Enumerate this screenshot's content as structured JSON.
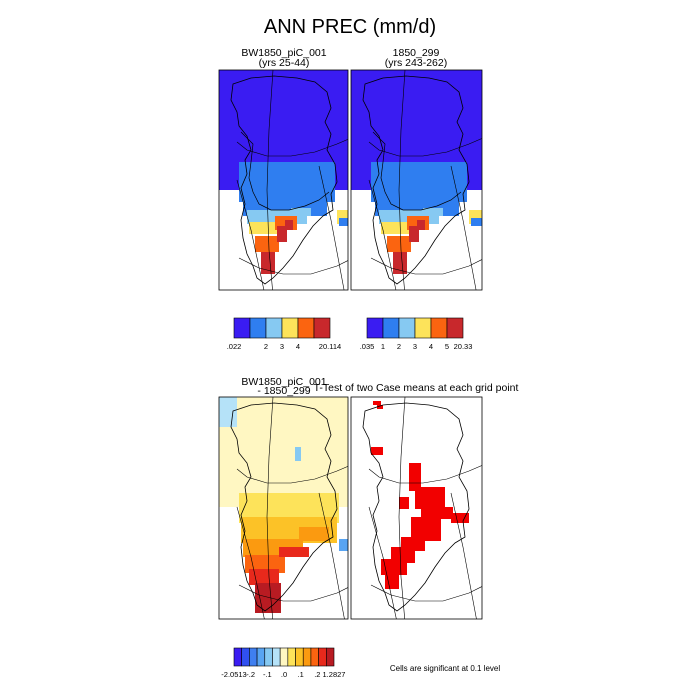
{
  "title": "ANN PREC (mm/d)",
  "chart_data": [
    {
      "type": "heatmap",
      "title_line1": "BW1850_piC_001",
      "title_line2": "(yrs 25-44)",
      "colorbar": {
        "colors": [
          "#3a1cf2",
          "#2f7ef0",
          "#86c9f2",
          "#fde35a",
          "#fb6410",
          "#c8282c"
        ],
        "labels": [
          ".022",
          "",
          "2",
          "3",
          "4",
          "",
          "20.114"
        ]
      }
    },
    {
      "type": "heatmap",
      "title_line1": "1850_299",
      "title_line2": "(yrs 243-262)",
      "colorbar": {
        "colors": [
          "#3a1cf2",
          "#2f7ef0",
          "#86c9f2",
          "#fde35a",
          "#fb6410",
          "#c8282c"
        ],
        "labels": [
          ".035",
          "1",
          "2",
          "3",
          "4",
          "5",
          "20.33"
        ]
      }
    },
    {
      "type": "heatmap",
      "title_line1": "BW1850_piC_001",
      "title_line2": "- 1850_299",
      "colorbar": {
        "colors": [
          "#3a1cf2",
          "#3050f0",
          "#3f7ff0",
          "#58a4f2",
          "#86c9f2",
          "#b5e2f8",
          "#fff7c2",
          "#fde35a",
          "#fcc227",
          "#fb9a10",
          "#fb6410",
          "#e8291c",
          "#b81b22"
        ],
        "labels": [
          "-2.0513",
          "-.2",
          "-.1",
          ".0",
          ".1",
          ".2",
          "1.2827"
        ]
      }
    },
    {
      "type": "heatmap",
      "title_line1": "T-Test of two Case means at each grid point",
      "footnote": "Cells are significant at 0.1 level"
    }
  ]
}
